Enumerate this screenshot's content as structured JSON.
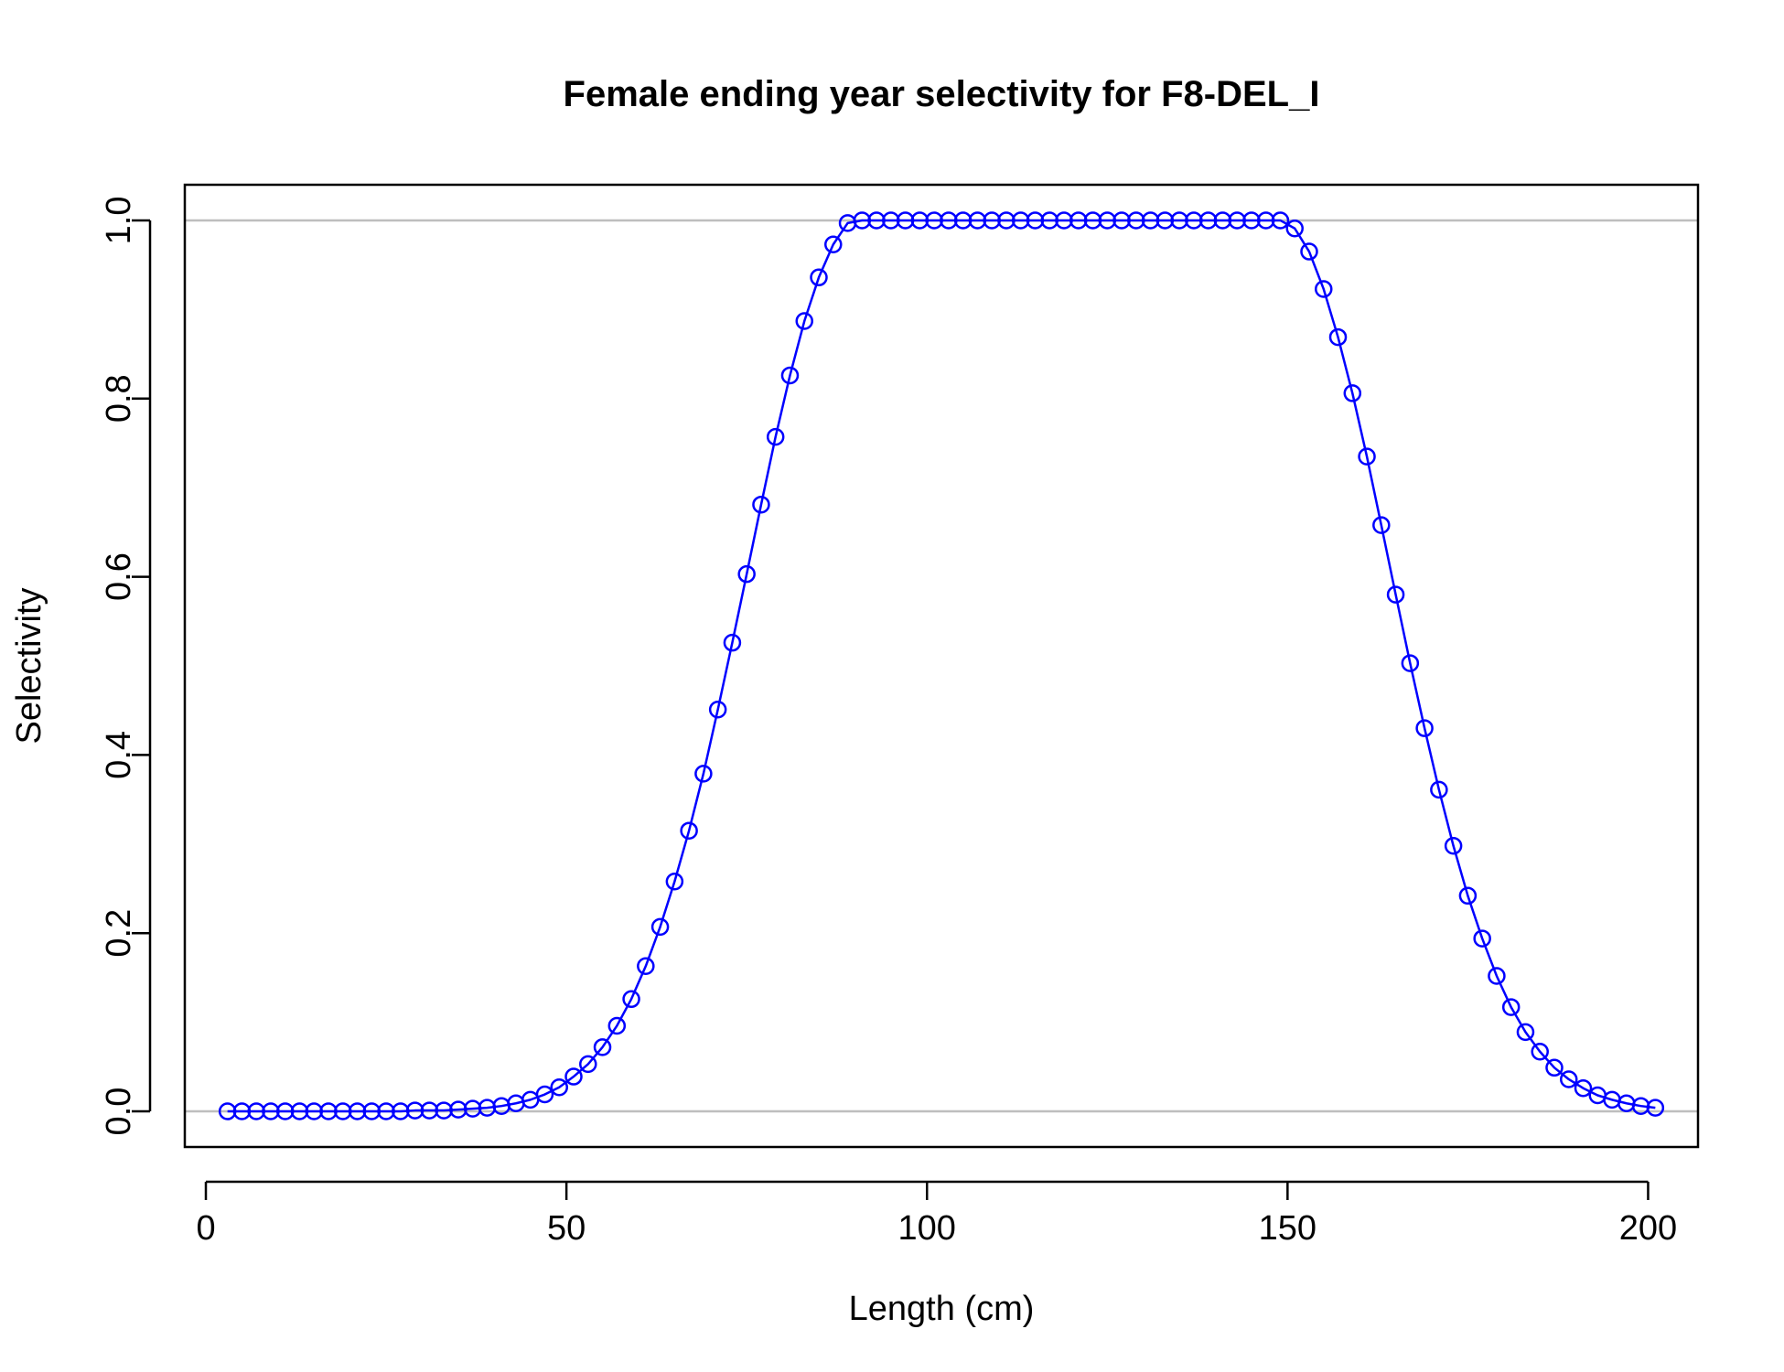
{
  "chart_data": {
    "type": "line",
    "title": "Female ending year selectivity for F8-DEL_I",
    "xlabel": "Length (cm)",
    "ylabel": "Selectivity",
    "xlim": [
      -2.92,
      206.92
    ],
    "ylim": [
      -0.04,
      1.04
    ],
    "xticks": [
      0,
      50,
      100,
      150,
      200
    ],
    "xtick_labels": [
      "0",
      "50",
      "100",
      "150",
      "200"
    ],
    "yticks": [
      0,
      0.2,
      0.4,
      0.6,
      0.8,
      1
    ],
    "ytick_labels": [
      "0.0",
      "0.2",
      "0.4",
      "0.6",
      "0.8",
      "1.0"
    ],
    "reference_lines_y": [
      0,
      1
    ],
    "reference_line_color": "#bebebe",
    "grid": false,
    "legend": "none",
    "series": [
      {
        "color": "#0000ff",
        "marker": "open-circle",
        "x": [
          3,
          5,
          7,
          9,
          11,
          13,
          15,
          17,
          19,
          21,
          23,
          25,
          27,
          29,
          31,
          33,
          35,
          37,
          39,
          41,
          43,
          45,
          47,
          49,
          51,
          53,
          55,
          57,
          59,
          61,
          63,
          65,
          67,
          69,
          71,
          73,
          75,
          77,
          79,
          81,
          83,
          85,
          87,
          89,
          91,
          93,
          95,
          97,
          99,
          101,
          103,
          105,
          107,
          109,
          111,
          113,
          115,
          117,
          119,
          121,
          123,
          125,
          127,
          129,
          131,
          133,
          135,
          137,
          139,
          141,
          143,
          145,
          147,
          149,
          151,
          153,
          155,
          157,
          159,
          161,
          163,
          165,
          167,
          169,
          171,
          173,
          175,
          177,
          179,
          181,
          183,
          185,
          187,
          189,
          191,
          193,
          195,
          197,
          199,
          201
        ],
        "values": [
          0,
          0,
          0,
          0,
          0,
          0,
          0,
          0,
          0,
          0,
          0,
          0,
          0,
          0.001,
          0.001,
          0.001,
          0.002,
          0.003,
          0.004,
          0.006,
          0.009,
          0.013,
          0.019,
          0.027,
          0.039,
          0.053,
          0.072,
          0.096,
          0.126,
          0.163,
          0.207,
          0.258,
          0.315,
          0.379,
          0.451,
          0.526,
          0.603,
          0.681,
          0.757,
          0.826,
          0.887,
          0.936,
          0.973,
          0.997,
          1,
          1,
          1,
          1,
          1,
          1,
          1,
          1,
          1,
          1,
          1,
          1,
          1,
          1,
          1,
          1,
          1,
          1,
          1,
          1,
          1,
          1,
          1,
          1,
          1,
          1,
          1,
          1,
          1,
          1,
          0.991,
          0.965,
          0.923,
          0.869,
          0.806,
          0.735,
          0.658,
          0.58,
          0.503,
          0.43,
          0.361,
          0.298,
          0.242,
          0.194,
          0.152,
          0.117,
          0.089,
          0.067,
          0.049,
          0.036,
          0.026,
          0.018,
          0.013,
          0.009,
          0.006,
          0.004
        ]
      }
    ]
  }
}
